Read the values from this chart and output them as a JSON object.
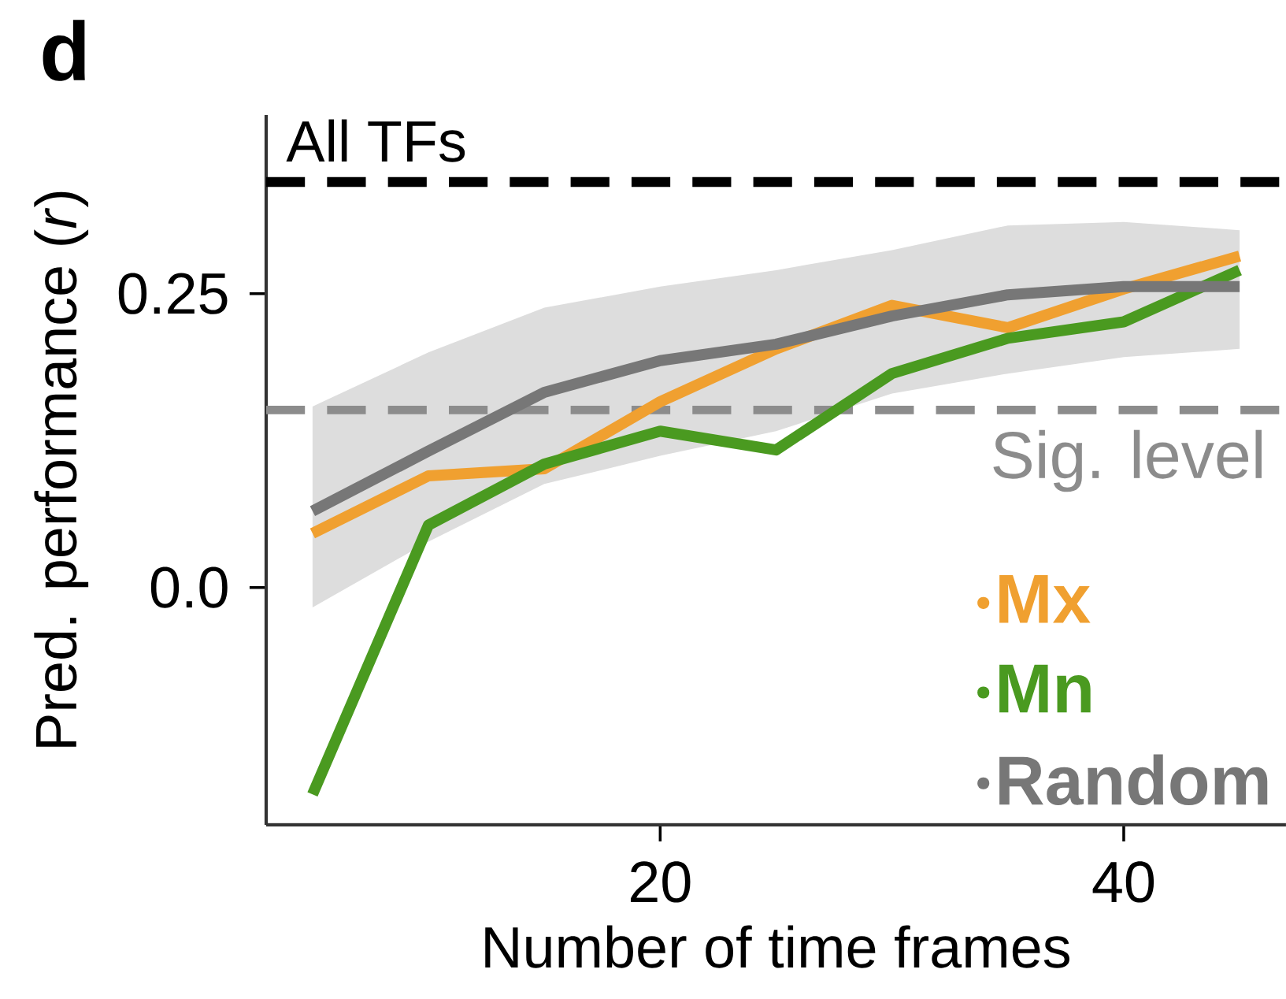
{
  "chart_data": {
    "type": "line",
    "xlabel": "Number of time frames",
    "ylabel": "Pred. performance (*r*)",
    "x": [
      5,
      10,
      15,
      20,
      25,
      30,
      35,
      40,
      45
    ],
    "series": [
      {
        "name": "Mx",
        "color": "#f0a030",
        "values": [
          0.046,
          0.095,
          0.101,
          0.158,
          0.203,
          0.24,
          0.221,
          0.254,
          0.282
        ]
      },
      {
        "name": "Mn",
        "color": "#4a9a20",
        "values": [
          -0.176,
          0.053,
          0.105,
          0.133,
          0.117,
          0.182,
          0.212,
          0.226,
          0.27
        ]
      },
      {
        "name": "Random",
        "color": "#777777",
        "values": [
          0.065,
          0.116,
          0.166,
          0.193,
          0.207,
          0.231,
          0.249,
          0.256,
          0.256
        ],
        "lower": [
          -0.017,
          0.039,
          0.088,
          0.112,
          0.133,
          0.165,
          0.182,
          0.196,
          0.203
        ],
        "upper": [
          0.154,
          0.2,
          0.238,
          0.256,
          0.27,
          0.287,
          0.308,
          0.311,
          0.304
        ]
      }
    ],
    "xlim": [
      3,
      47
    ],
    "ylim": [
      -0.202,
      0.402
    ],
    "xticks": [
      20,
      40
    ],
    "yticks": [
      {
        "value": 0,
        "label": "0.0"
      },
      0.25
    ],
    "ref_lines": [
      {
        "axis": "y",
        "value": 0.345,
        "label": "All TFs",
        "color": "#000000",
        "line_style": "dashed"
      },
      {
        "axis": "y",
        "value": 0.151,
        "label": "Sig. level",
        "color": "#8c8c8c",
        "line_style": "dashed"
      }
    ],
    "legend": "bottom right",
    "annotations": [
      "d"
    ]
  }
}
